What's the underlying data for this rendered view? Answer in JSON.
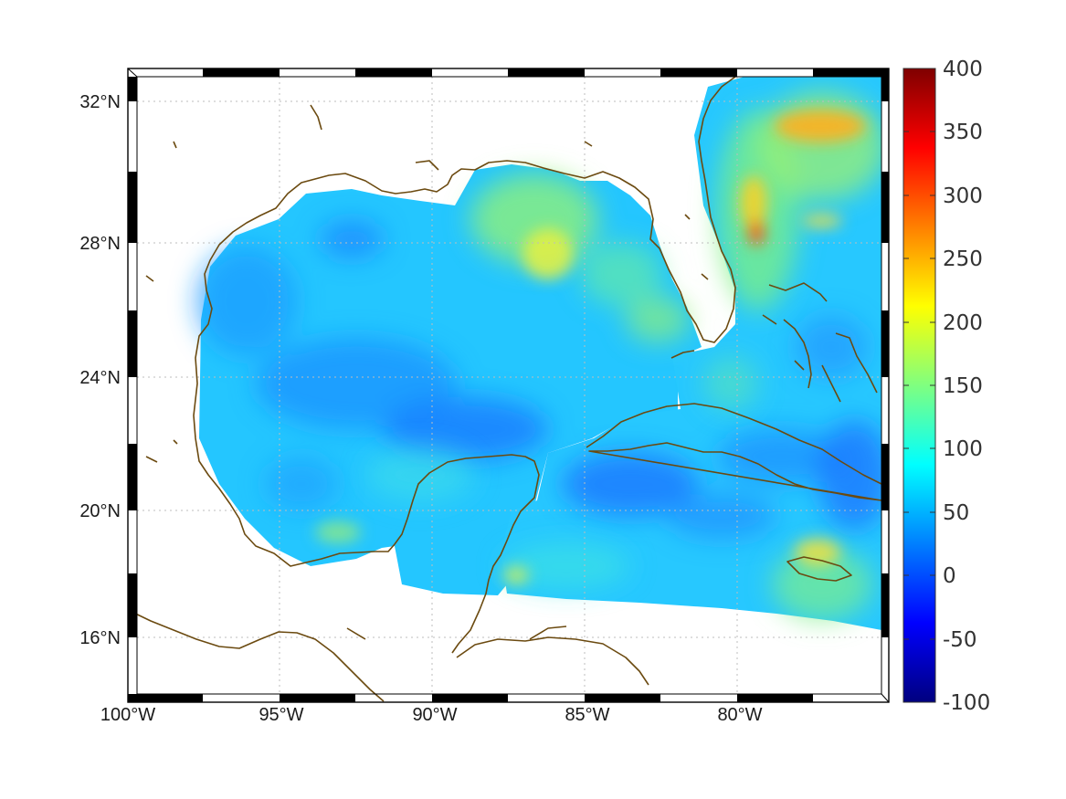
{
  "figure": {
    "colorbar": {
      "labels": [
        "400",
        "350",
        "300",
        "250",
        "200",
        "150",
        "100",
        "50",
        "0",
        "-50",
        "-100"
      ],
      "range": [
        -100,
        400
      ],
      "colormap": "jet"
    },
    "axes": {
      "x_ticks": [
        "100°W",
        "95°W",
        "90°W",
        "85°W",
        "80°W"
      ],
      "y_ticks": [
        "32°N",
        "28°N",
        "24°N",
        "20°N",
        "16°N"
      ],
      "lon_range": [
        -100,
        -75
      ],
      "lat_range": [
        14.2,
        32.9
      ],
      "grid": "dotted"
    },
    "colors": {
      "coastline": "#6b4a10",
      "grid": "#bdbdbd",
      "frame_dark": "#000000",
      "frame_light": "#ffffff",
      "dominant_field": "#1fc4ff"
    }
  }
}
